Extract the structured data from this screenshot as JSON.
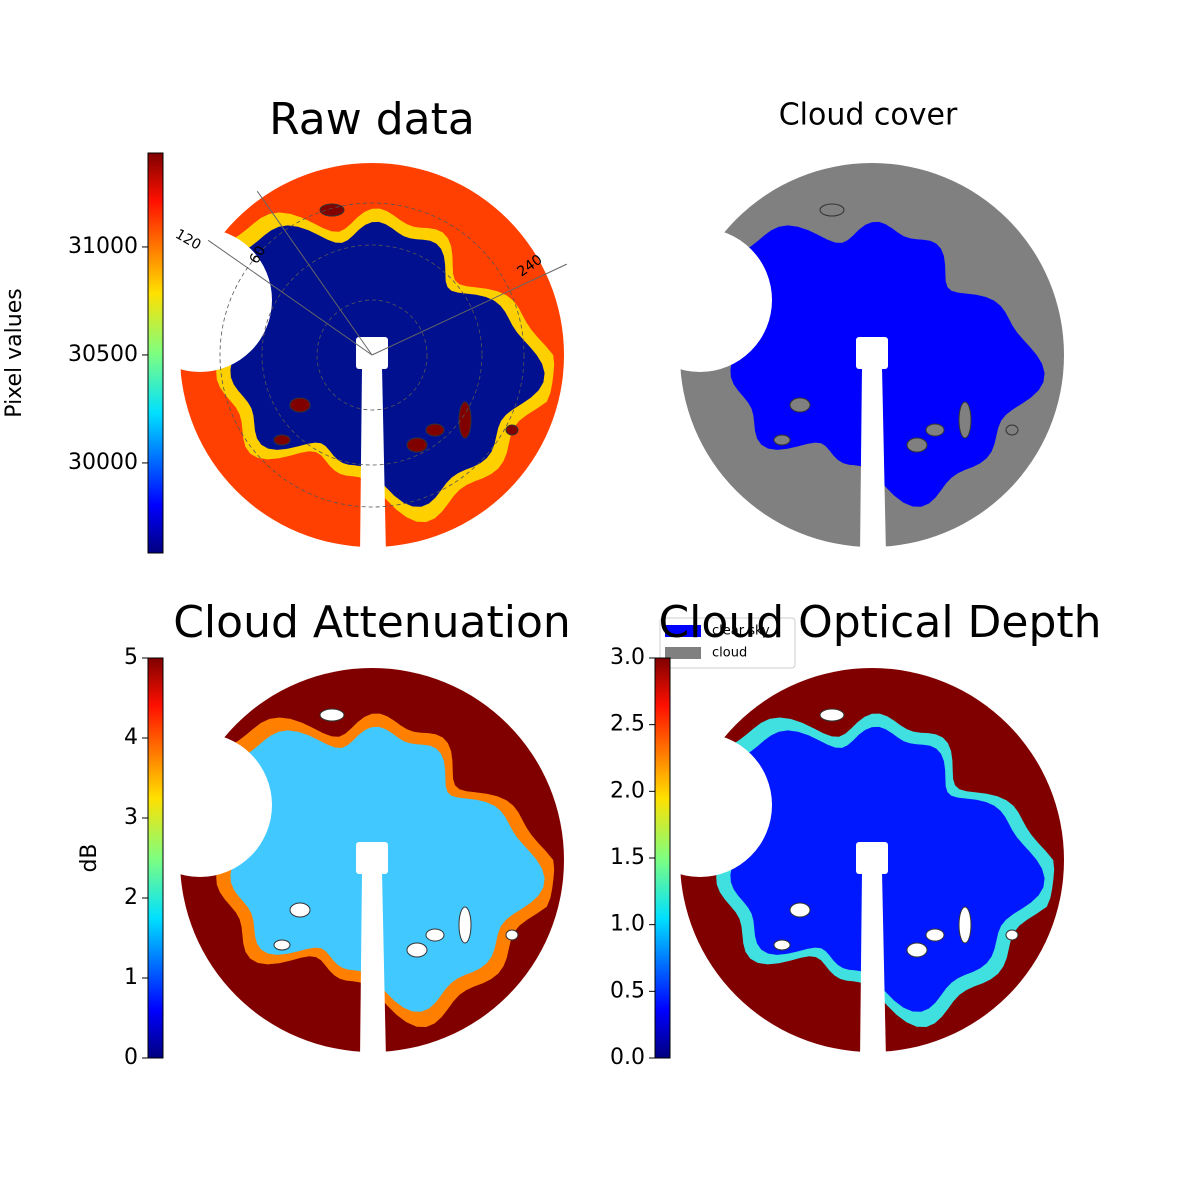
{
  "chart_data": [
    {
      "type": "image",
      "title": "Raw data",
      "colormap": "jet",
      "colorbar_label": "Pixel values",
      "ylim": [
        29583,
        31435
      ],
      "yticks": [
        30000,
        30500,
        31000
      ],
      "annotations": [
        "120",
        "60",
        "240"
      ]
    },
    {
      "type": "image",
      "title": "Cloud cover",
      "series": [
        {
          "name": "clear sky",
          "color": "#0000ff"
        },
        {
          "name": "cloud",
          "color": "#808080"
        }
      ]
    },
    {
      "type": "image",
      "title": "Cloud Attenuation",
      "colormap": "jet",
      "colorbar_label": "dB",
      "ylim": [
        0,
        5
      ],
      "yticks": [
        0,
        1,
        2,
        3,
        4,
        5
      ]
    },
    {
      "type": "image",
      "title": "Cloud Optical Depth",
      "colormap": "jet",
      "ylim": [
        0,
        3
      ],
      "yticks": [
        {
          "value": 0,
          "label": "0.0"
        },
        {
          "value": 0.5,
          "label": "0.5"
        },
        {
          "value": 1,
          "label": "1.0"
        },
        {
          "value": 1.5,
          "label": "1.5"
        },
        {
          "value": 2,
          "label": "2.0"
        },
        {
          "value": 2.5,
          "label": "2.5"
        },
        {
          "value": 3,
          "label": "3.0"
        }
      ]
    }
  ]
}
